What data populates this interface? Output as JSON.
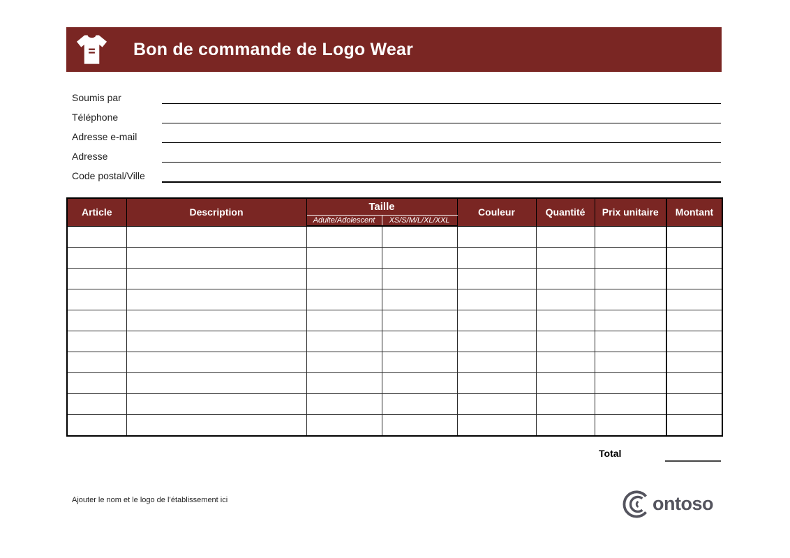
{
  "banner": {
    "title": "Bon de commande de Logo Wear",
    "color": "#7a2623"
  },
  "form": {
    "fields": [
      {
        "label": "Soumis par",
        "value": ""
      },
      {
        "label": "Téléphone",
        "value": ""
      },
      {
        "label": "Adresse e-mail",
        "value": ""
      },
      {
        "label": "Adresse",
        "value": ""
      },
      {
        "label": "Code postal/Ville",
        "value": ""
      }
    ]
  },
  "table": {
    "headers": {
      "article": "Article",
      "description": "Description",
      "taille": "Taille",
      "taille_sub_left": "Adulte/Adolescent",
      "taille_sub_right": "XS/S/M/L/XL/XXL",
      "couleur": "Couleur",
      "quantite": "Quantité",
      "prix_unitaire": "Prix unitaire",
      "montant": "Montant"
    },
    "body_row_count": 10,
    "body_col_count": 8
  },
  "totals": {
    "label": "Total",
    "value": ""
  },
  "footer": {
    "note": "Ajouter le nom et le logo de l’établissement ici",
    "logo_name": "Contoso",
    "logo_wordmark": "ontoso"
  },
  "colors": {
    "maroon": "#7a2623",
    "logo_gray": "#54545e",
    "border_black": "#000000"
  }
}
